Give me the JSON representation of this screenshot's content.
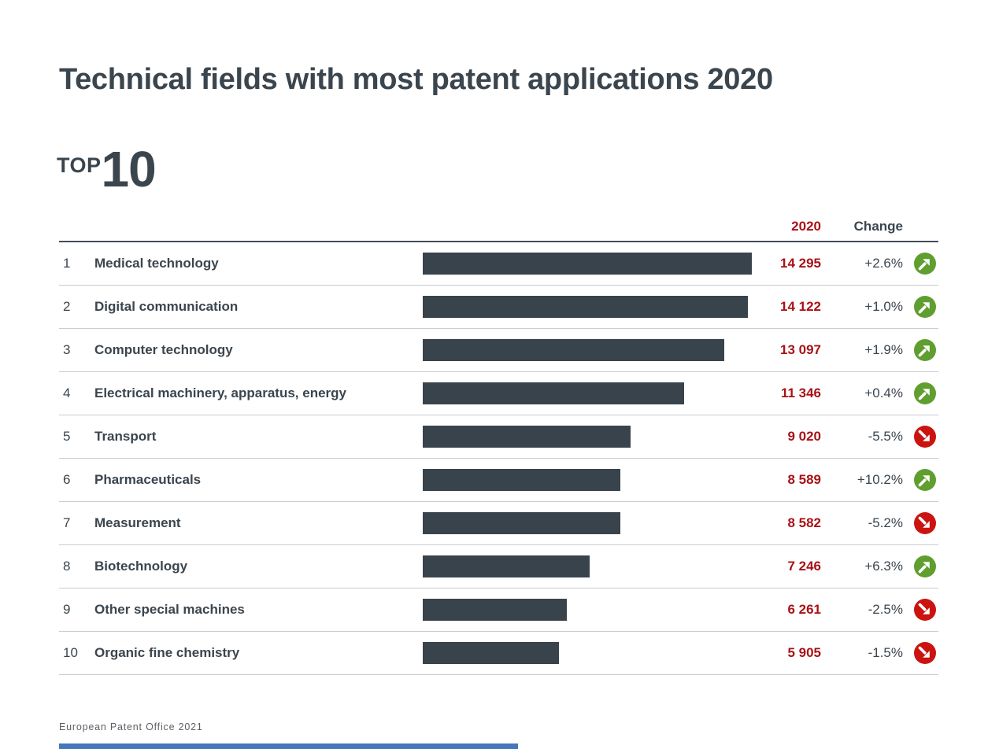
{
  "title": "Technical fields with most patent applications 2020",
  "badge": {
    "top_label": "TOP",
    "top_number": "10"
  },
  "table_header": {
    "year": "2020",
    "change": "Change"
  },
  "rows": [
    {
      "rank": "1",
      "label": "Medical technology",
      "value": "14 295",
      "change": "+2.6%",
      "trend": "up"
    },
    {
      "rank": "2",
      "label": "Digital communication",
      "value": "14 122",
      "change": "+1.0%",
      "trend": "up"
    },
    {
      "rank": "3",
      "label": "Computer technology",
      "value": "13 097",
      "change": "+1.9%",
      "trend": "up"
    },
    {
      "rank": "4",
      "label": "Electrical machinery, apparatus, energy",
      "value": "11 346",
      "change": "+0.4%",
      "trend": "up"
    },
    {
      "rank": "5",
      "label": "Transport",
      "value": "9 020",
      "change": "-5.5%",
      "trend": "down"
    },
    {
      "rank": "6",
      "label": "Pharmaceuticals",
      "value": "8 589",
      "change": "+10.2%",
      "trend": "up"
    },
    {
      "rank": "7",
      "label": "Measurement",
      "value": "8 582",
      "change": "-5.2%",
      "trend": "down"
    },
    {
      "rank": "8",
      "label": "Biotechnology",
      "value": "7 246",
      "change": "+6.3%",
      "trend": "up"
    },
    {
      "rank": "9",
      "label": "Other special machines",
      "value": "6 261",
      "change": "-2.5%",
      "trend": "down"
    },
    {
      "rank": "10",
      "label": "Organic fine chemistry",
      "value": "5 905",
      "change": "-1.5%",
      "trend": "down"
    }
  ],
  "footer": {
    "source": "European Patent Office 2021"
  },
  "colors": {
    "heading": "#3b454e",
    "bar": "#39434b",
    "value_red": "#a91116",
    "trend_up_green": "#5f9e2f",
    "trend_down_red": "#cb1310",
    "separator": "#c9cbcd",
    "header_rule": "#434d56",
    "footer_bar_blue": "#4577bc"
  },
  "chart_data": {
    "type": "bar",
    "orientation": "horizontal",
    "title": "Technical fields with most patent applications 2020",
    "subtitle": "TOP 10",
    "categories": [
      "Medical technology",
      "Digital communication",
      "Computer technology",
      "Electrical machinery, apparatus, energy",
      "Transport",
      "Pharmaceuticals",
      "Measurement",
      "Biotechnology",
      "Other special machines",
      "Organic fine chemistry"
    ],
    "values": [
      14295,
      14122,
      13097,
      11346,
      9020,
      8589,
      8582,
      7246,
      6261,
      5905
    ],
    "change_pct": [
      2.6,
      1.0,
      1.9,
      0.4,
      -5.5,
      10.2,
      -5.2,
      6.3,
      -2.5,
      -1.5
    ],
    "value_column_header": "2020",
    "change_column_header": "Change",
    "xlim": [
      0,
      14295
    ],
    "grid": false,
    "legend": "none",
    "source": "European Patent Office 2021"
  }
}
